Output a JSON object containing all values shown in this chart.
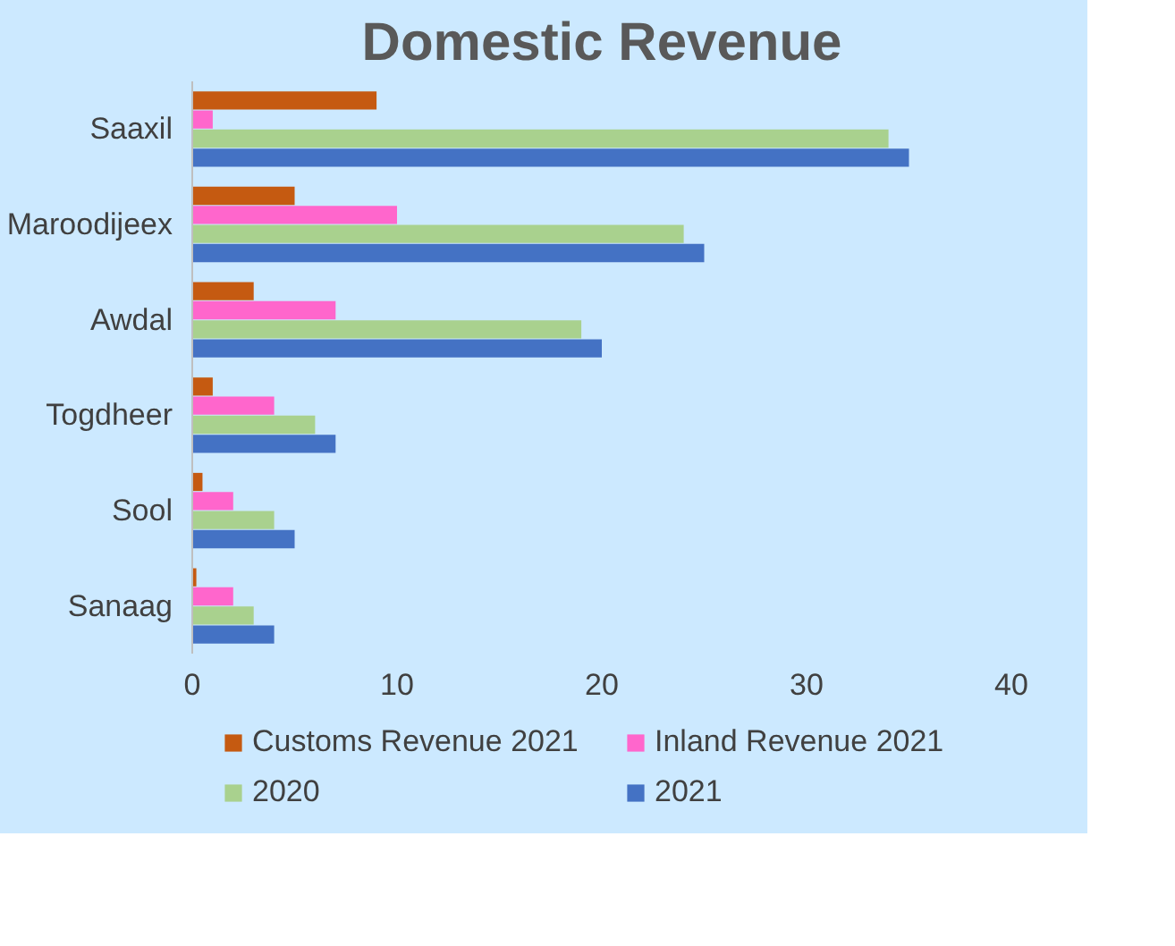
{
  "chart_data": {
    "type": "bar",
    "orientation": "horizontal",
    "title": "Domestic Revenue",
    "categories": [
      "Saaxil",
      "Maroodijeex",
      "Awdal",
      "Togdheer",
      "Sool",
      "Sanaag"
    ],
    "series": [
      {
        "name": "Customs Revenue 2021",
        "color": "#c55a11",
        "values": [
          9,
          5,
          3,
          1,
          0.5,
          0.2
        ]
      },
      {
        "name": "Inland Revenue 2021",
        "color": "#ff66cc",
        "values": [
          1,
          10,
          7,
          4,
          2,
          2
        ]
      },
      {
        "name": "2020",
        "color": "#a9d18e",
        "values": [
          34,
          24,
          19,
          6,
          4,
          3
        ]
      },
      {
        "name": "2021",
        "color": "#4472c4",
        "values": [
          35,
          25,
          20,
          7,
          5,
          4
        ]
      }
    ],
    "xlim": [
      0,
      40
    ],
    "xticks": [
      0,
      10,
      20,
      30,
      40
    ],
    "grid": false,
    "legend": "bottom"
  }
}
